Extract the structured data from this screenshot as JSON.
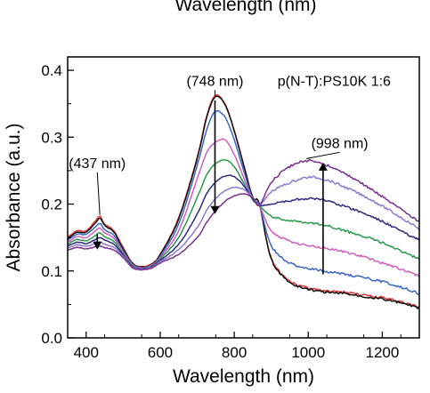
{
  "chart_data": {
    "type": "line",
    "top_partial_text": "Wavelength (nm)",
    "xlabel": "Wavelength (nm)",
    "ylabel": "Absorbance (a.u.)",
    "xlim": [
      350,
      1300
    ],
    "ylim": [
      0.0,
      0.42
    ],
    "x_ticks": [
      400,
      600,
      800,
      1000,
      1200
    ],
    "y_ticks": [
      0.0,
      0.1,
      0.2,
      0.3,
      0.4
    ],
    "y_tick_labels": [
      "0.0",
      "0.1",
      "0.2",
      "0.3",
      "0.4"
    ],
    "legend": "none",
    "grid": false,
    "x": [
      350,
      375,
      400,
      425,
      437,
      450,
      475,
      500,
      525,
      550,
      575,
      600,
      650,
      700,
      725,
      748,
      775,
      800,
      825,
      850,
      868,
      900,
      950,
      1000,
      1050,
      1100,
      1150,
      1200,
      1250,
      1300
    ],
    "series": [
      {
        "color": "#e03a3a",
        "values": [
          0.15,
          0.16,
          0.16,
          0.175,
          0.182,
          0.17,
          0.16,
          0.135,
          0.112,
          0.107,
          0.11,
          0.125,
          0.18,
          0.27,
          0.33,
          0.362,
          0.35,
          0.31,
          0.26,
          0.21,
          0.2,
          0.12,
          0.085,
          0.075,
          0.07,
          0.068,
          0.064,
          0.06,
          0.054,
          0.046
        ]
      },
      {
        "color": "#111111",
        "values": [
          0.148,
          0.158,
          0.158,
          0.172,
          0.179,
          0.168,
          0.158,
          0.133,
          0.111,
          0.106,
          0.109,
          0.124,
          0.178,
          0.268,
          0.328,
          0.36,
          0.349,
          0.309,
          0.259,
          0.21,
          0.2,
          0.118,
          0.083,
          0.073,
          0.068,
          0.066,
          0.062,
          0.058,
          0.052,
          0.044
        ]
      },
      {
        "color": "#3a66c4",
        "values": [
          0.146,
          0.155,
          0.155,
          0.166,
          0.171,
          0.162,
          0.153,
          0.13,
          0.11,
          0.105,
          0.108,
          0.122,
          0.17,
          0.258,
          0.31,
          0.338,
          0.33,
          0.296,
          0.251,
          0.207,
          0.198,
          0.138,
          0.112,
          0.104,
          0.099,
          0.095,
          0.09,
          0.084,
          0.076,
          0.066
        ]
      },
      {
        "color": "#d060c0",
        "values": [
          0.143,
          0.151,
          0.15,
          0.16,
          0.164,
          0.157,
          0.149,
          0.128,
          0.109,
          0.105,
          0.108,
          0.12,
          0.16,
          0.238,
          0.276,
          0.292,
          0.296,
          0.274,
          0.24,
          0.206,
          0.198,
          0.16,
          0.145,
          0.138,
          0.134,
          0.128,
          0.121,
          0.112,
          0.103,
          0.092
        ]
      },
      {
        "color": "#2a9a4a",
        "values": [
          0.14,
          0.147,
          0.145,
          0.153,
          0.157,
          0.151,
          0.144,
          0.126,
          0.108,
          0.104,
          0.107,
          0.118,
          0.15,
          0.21,
          0.243,
          0.26,
          0.266,
          0.256,
          0.232,
          0.206,
          0.198,
          0.182,
          0.175,
          0.172,
          0.168,
          0.16,
          0.152,
          0.142,
          0.13,
          0.118
        ]
      },
      {
        "color": "#2c2c80",
        "values": [
          0.137,
          0.143,
          0.141,
          0.147,
          0.15,
          0.146,
          0.14,
          0.124,
          0.107,
          0.104,
          0.106,
          0.116,
          0.14,
          0.185,
          0.215,
          0.232,
          0.242,
          0.241,
          0.228,
          0.208,
          0.198,
          0.2,
          0.205,
          0.208,
          0.205,
          0.196,
          0.186,
          0.174,
          0.16,
          0.146
        ]
      },
      {
        "color": "#8e78d0",
        "values": [
          0.134,
          0.139,
          0.137,
          0.141,
          0.143,
          0.14,
          0.135,
          0.122,
          0.106,
          0.103,
          0.105,
          0.114,
          0.132,
          0.165,
          0.19,
          0.207,
          0.22,
          0.225,
          0.222,
          0.21,
          0.198,
          0.218,
          0.232,
          0.24,
          0.236,
          0.225,
          0.212,
          0.197,
          0.18,
          0.163
        ]
      },
      {
        "color": "#7a2f8e",
        "values": [
          0.131,
          0.135,
          0.133,
          0.136,
          0.137,
          0.135,
          0.131,
          0.12,
          0.105,
          0.102,
          0.104,
          0.112,
          0.125,
          0.15,
          0.172,
          0.189,
          0.204,
          0.212,
          0.215,
          0.21,
          0.198,
          0.232,
          0.256,
          0.265,
          0.258,
          0.245,
          0.229,
          0.211,
          0.192,
          0.174
        ]
      }
    ],
    "annotations": [
      {
        "text": "(748 nm)",
        "label_x": 748,
        "label_y": 0.385,
        "pointer_x": 748,
        "pointer_y": 0.362
      },
      {
        "text": "(437 nm)",
        "label_x": 430,
        "label_y": 0.262,
        "pointer_x": 437,
        "pointer_y": 0.184
      },
      {
        "text": "(998 nm)",
        "label_x": 1085,
        "label_y": 0.292,
        "pointer_x": 995,
        "pointer_y": 0.268
      },
      {
        "text": "p(N-T):PS10K 1:6",
        "label_x": 1070,
        "label_y": 0.385
      }
    ],
    "arrows": [
      {
        "x": 748,
        "from_y": 0.355,
        "to_y": 0.185
      },
      {
        "x": 1040,
        "from_y": 0.095,
        "to_y": 0.262
      },
      {
        "x": 430,
        "from_y": 0.155,
        "to_y": 0.132
      }
    ]
  }
}
